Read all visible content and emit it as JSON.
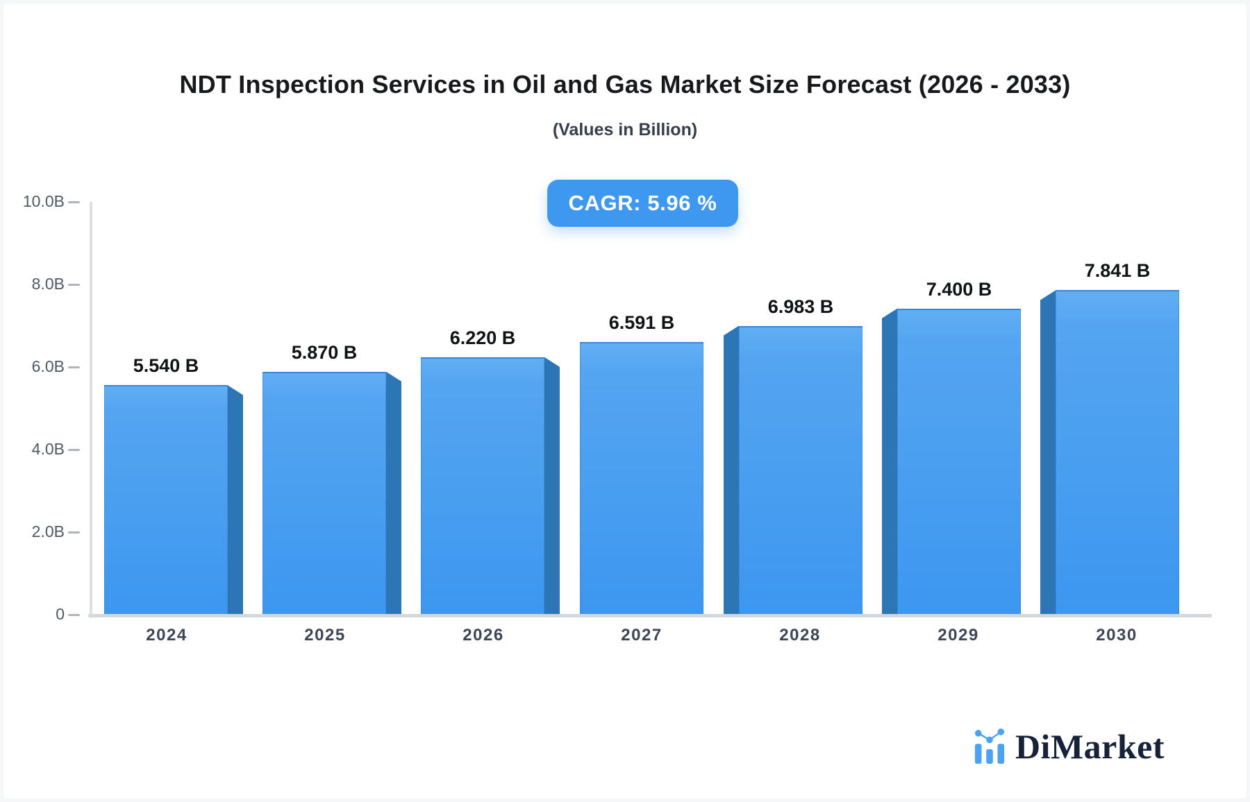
{
  "header": {
    "title": "NDT Inspection Services in Oil and Gas Market Size Forecast (2026 - 2033)",
    "subtitle": "(Values in Billion)"
  },
  "badge": {
    "label": "CAGR: 5.96 %",
    "bg_color": "#3e98f0",
    "text_color": "#ffffff"
  },
  "brand": {
    "name": "DiMarket",
    "icon": "bar-chart-with-dots-icon",
    "text_color": "#152238",
    "icon_color": "#4aa2f5"
  },
  "chart_data": {
    "type": "bar",
    "categories": [
      "2024",
      "2025",
      "2026",
      "2027",
      "2028",
      "2029",
      "2030"
    ],
    "values": [
      5.54,
      5.87,
      6.22,
      6.591,
      6.983,
      7.4,
      7.841
    ],
    "value_labels": [
      "5.540 B",
      "5.870 B",
      "6.220 B",
      "6.591 B",
      "6.983 B",
      "7.400 B",
      "7.841 B"
    ],
    "title": "NDT Inspection Services in Oil and Gas Market Size Forecast (2026 - 2033)",
    "xlabel": "",
    "ylabel": "",
    "ylim": [
      0,
      10
    ],
    "yticks": [
      {
        "label": "10.0B",
        "value": 10
      },
      {
        "label": "8.0B",
        "value": 8
      },
      {
        "label": "6.0B",
        "value": 6
      },
      {
        "label": "4.0B",
        "value": 4
      },
      {
        "label": "2.0B",
        "value": 2
      },
      {
        "label": "0",
        "value": 0
      }
    ],
    "grid": false,
    "legend": null,
    "bar_style": {
      "face_top_color": "#61aef3",
      "face_bottom_color": "#3d97ef",
      "side_color": "#2d76b6",
      "effect": "3d-perspective: side face on right for bars left of center, on left for bars right of center"
    }
  }
}
